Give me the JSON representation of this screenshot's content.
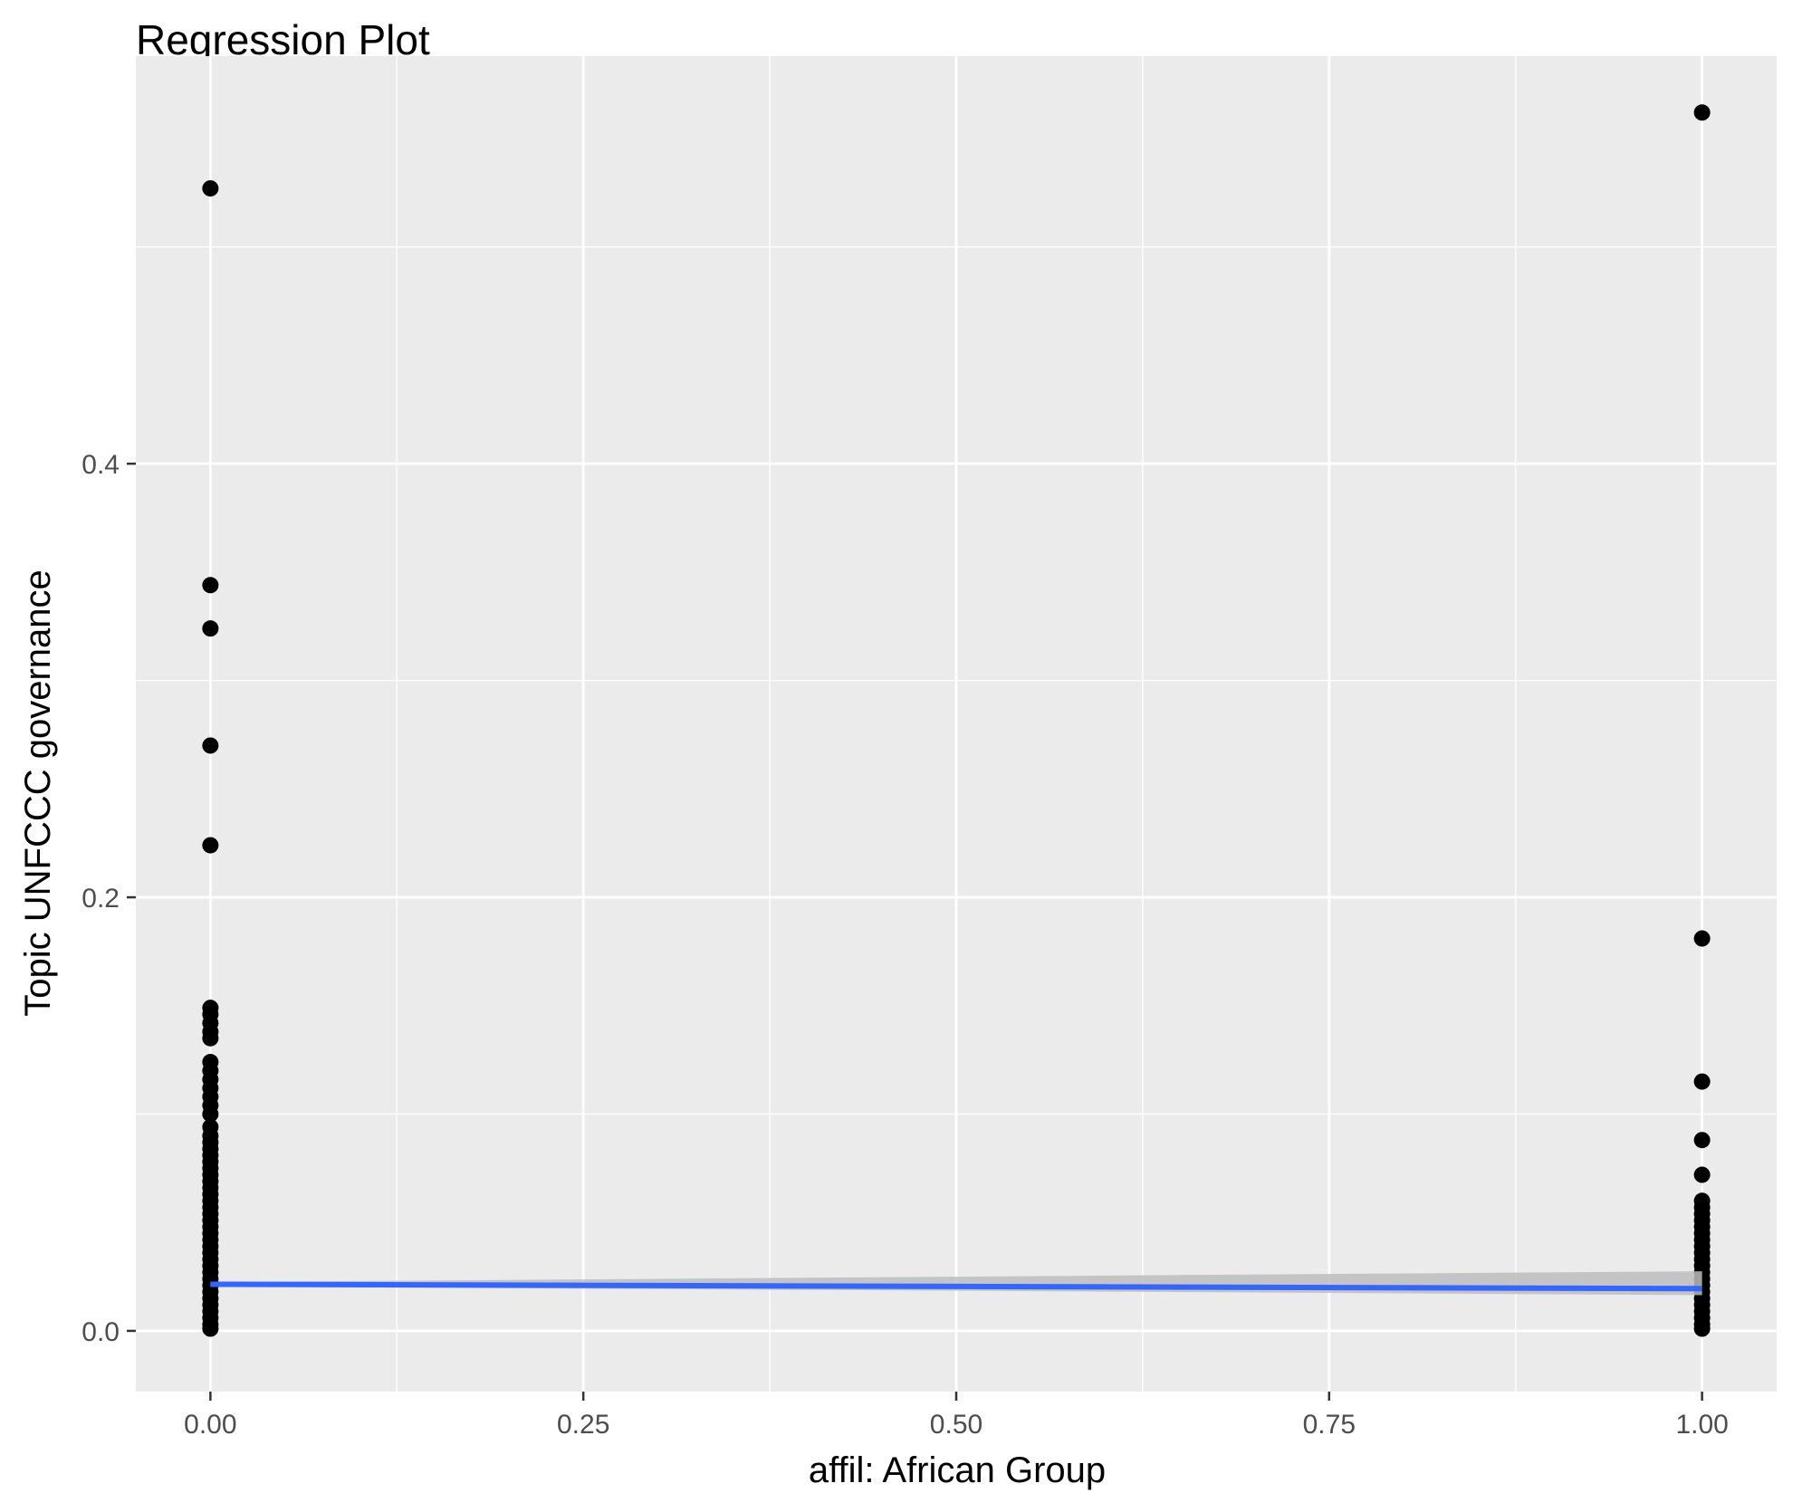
{
  "chart_data": {
    "type": "scatter",
    "title": "Regression Plot",
    "xlabel": "affil: African Group",
    "ylabel": "Topic UNFCCC governance",
    "xlim": [
      -0.05,
      1.05
    ],
    "ylim": [
      -0.028,
      0.588
    ],
    "x_ticks": [
      0.0,
      0.25,
      0.5,
      0.75,
      1.0
    ],
    "x_tick_labels": [
      "0.00",
      "0.25",
      "0.50",
      "0.75",
      "1.00"
    ],
    "y_ticks": [
      0.0,
      0.2,
      0.4
    ],
    "y_tick_labels": [
      "0.0",
      "0.2",
      "0.4"
    ],
    "grid": true,
    "colors": {
      "panel_background": "#ebebeb",
      "grid_line": "#ffffff",
      "points": "#000000",
      "regression_line": "#3366ff",
      "confidence_band": "#bdbdbd",
      "text": "#000000",
      "tick_label": "#4d4d4d"
    },
    "series": [
      {
        "type": "scatter",
        "points": [
          [
            0,
            0.527
          ],
          [
            0,
            0.344
          ],
          [
            0,
            0.324
          ],
          [
            0,
            0.27
          ],
          [
            0,
            0.224
          ],
          [
            0,
            0.149
          ],
          [
            0,
            0.146
          ],
          [
            0,
            0.142
          ],
          [
            0,
            0.138
          ],
          [
            0,
            0.135
          ],
          [
            0,
            0.124
          ],
          [
            0,
            0.12
          ],
          [
            0,
            0.116
          ],
          [
            0,
            0.112
          ],
          [
            0,
            0.108
          ],
          [
            0,
            0.104
          ],
          [
            0,
            0.1
          ],
          [
            0,
            0.094
          ],
          [
            0,
            0.09
          ],
          [
            0,
            0.087
          ],
          [
            0,
            0.084
          ],
          [
            0,
            0.081
          ],
          [
            0,
            0.078
          ],
          [
            0,
            0.075
          ],
          [
            0,
            0.072
          ],
          [
            0,
            0.069
          ],
          [
            0,
            0.066
          ],
          [
            0,
            0.063
          ],
          [
            0,
            0.06
          ],
          [
            0,
            0.057
          ],
          [
            0,
            0.054
          ],
          [
            0,
            0.051
          ],
          [
            0,
            0.048
          ],
          [
            0,
            0.045
          ],
          [
            0,
            0.042
          ],
          [
            0,
            0.039
          ],
          [
            0,
            0.036
          ],
          [
            0,
            0.033
          ],
          [
            0,
            0.03
          ],
          [
            0,
            0.027
          ],
          [
            0,
            0.024
          ],
          [
            0,
            0.021
          ],
          [
            0,
            0.018
          ],
          [
            0,
            0.015
          ],
          [
            0,
            0.012
          ],
          [
            0,
            0.009
          ],
          [
            0,
            0.006
          ],
          [
            0,
            0.003
          ],
          [
            0,
            0.001
          ],
          [
            1,
            0.562
          ],
          [
            1,
            0.181
          ],
          [
            1,
            0.115
          ],
          [
            1,
            0.088
          ],
          [
            1,
            0.072
          ],
          [
            1,
            0.06
          ],
          [
            1,
            0.057
          ],
          [
            1,
            0.054
          ],
          [
            1,
            0.051
          ],
          [
            1,
            0.048
          ],
          [
            1,
            0.045
          ],
          [
            1,
            0.042
          ],
          [
            1,
            0.039
          ],
          [
            1,
            0.036
          ],
          [
            1,
            0.033
          ],
          [
            1,
            0.03
          ],
          [
            1,
            0.027
          ],
          [
            1,
            0.024
          ],
          [
            1,
            0.021
          ],
          [
            1,
            0.018
          ],
          [
            1,
            0.015
          ],
          [
            1,
            0.012
          ],
          [
            1,
            0.009
          ],
          [
            1,
            0.006
          ],
          [
            1,
            0.003
          ],
          [
            1,
            0.001
          ]
        ]
      }
    ],
    "regression": {
      "x": [
        0,
        1
      ],
      "y": [
        0.0215,
        0.0195
      ],
      "band_lower": [
        0.0205,
        0.0165
      ],
      "band_upper": [
        0.0225,
        0.0275
      ]
    }
  }
}
